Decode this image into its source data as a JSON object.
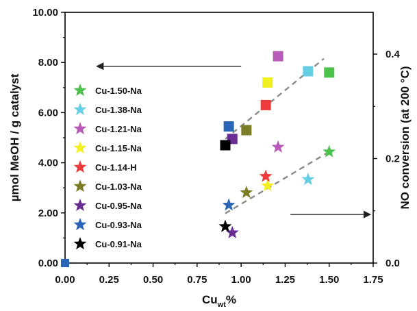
{
  "chart_data": {
    "type": "scatter",
    "xlabel_main": "Cu",
    "xlabel_sub": "wt",
    "xlabel_suffix": "%",
    "ylabel_left": "µmol MeOH / g catalyst",
    "ylabel_right": "NO conversion (at 200 °C)",
    "xlim": [
      0.0,
      1.75
    ],
    "ylim_left": [
      0.0,
      10.0
    ],
    "ylim_right": [
      0.0,
      0.48
    ],
    "xticks": [
      "0.00",
      "0.25",
      "0.50",
      "0.75",
      "1.00",
      "1.25",
      "1.50",
      "1.75"
    ],
    "yticks_left": [
      "0.00",
      "2.00",
      "4.00",
      "6.00",
      "8.00",
      "10.00"
    ],
    "yticks_right": [
      "0.0",
      "0.2",
      "0.4"
    ],
    "legend_position": "left",
    "series": [
      {
        "name": "Cu-1.50-Na",
        "color": "#4cc24c",
        "x": 1.5,
        "methanol": 7.6,
        "no_conversion": 0.213
      },
      {
        "name": "Cu-1.38-Na",
        "color": "#66cfe3",
        "x": 1.38,
        "methanol": 7.65,
        "no_conversion": 0.16
      },
      {
        "name": "Cu-1.21-Na",
        "color": "#b85bb8",
        "x": 1.21,
        "methanol": 8.25,
        "no_conversion": 0.222
      },
      {
        "name": "Cu-1.15-Na",
        "color": "#f2ef22",
        "x": 1.15,
        "methanol": 7.2,
        "no_conversion": 0.148
      },
      {
        "name": "Cu-1.14-H",
        "color": "#ee3b3b",
        "x": 1.14,
        "methanol": 6.3,
        "no_conversion": 0.166
      },
      {
        "name": "Cu-1.03-Na",
        "color": "#7b7d26",
        "x": 1.03,
        "methanol": 5.3,
        "no_conversion": 0.135
      },
      {
        "name": "Cu-0.95-Na",
        "color": "#6a2d94",
        "x": 0.95,
        "methanol": 4.95,
        "no_conversion": 0.058
      },
      {
        "name": "Cu-0.93-Na",
        "color": "#2a66b8",
        "x": 0.93,
        "methanol": 5.45,
        "no_conversion": 0.111
      },
      {
        "name": "Cu-0.91-Na",
        "color": "#000000",
        "x": 0.91,
        "methanol": 4.7,
        "no_conversion": 0.07
      }
    ],
    "extra_point": {
      "x": 0.0,
      "methanol": 0.0,
      "color": "#2a66b8"
    },
    "trend_methanol": [
      [
        0.91,
        4.95
      ],
      [
        1.47,
        8.15
      ]
    ],
    "trend_no": [
      [
        0.91,
        0.095
      ],
      [
        1.5,
        0.213
      ]
    ],
    "arrow_left": {
      "from_x": 1.0,
      "to_x": 0.18,
      "y": 7.85
    },
    "arrow_right": {
      "from_x": 1.28,
      "to_x": 1.75,
      "y": 0.093
    }
  }
}
